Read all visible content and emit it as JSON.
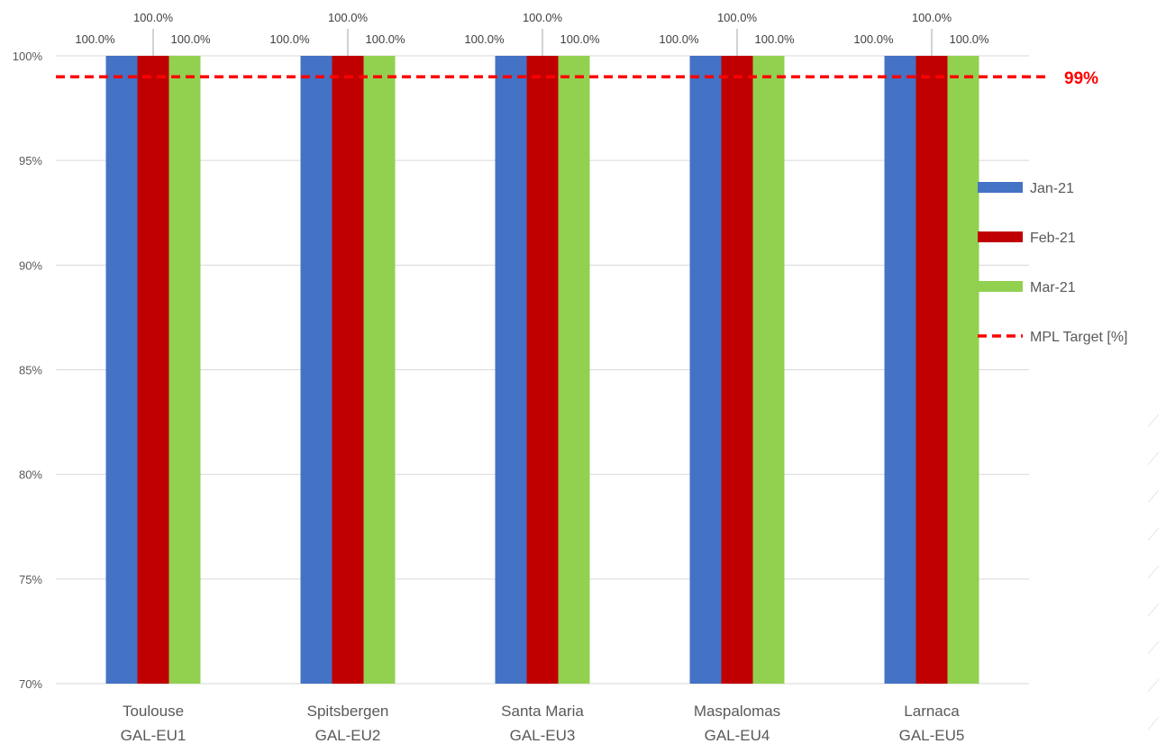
{
  "chart_data": {
    "type": "bar",
    "categories": [
      [
        "Toulouse",
        "GAL-EU1"
      ],
      [
        "Spitsbergen",
        "GAL-EU2"
      ],
      [
        "Santa Maria",
        "GAL-EU3"
      ],
      [
        "Maspalomas",
        "GAL-EU4"
      ],
      [
        "Larnaca",
        "GAL-EU5"
      ]
    ],
    "series": [
      {
        "name": "Jan-21",
        "color": "#4472C4",
        "values": [
          100.0,
          100.0,
          100.0,
          100.0,
          100.0
        ]
      },
      {
        "name": "Feb-21",
        "color": "#C00000",
        "values": [
          100.0,
          100.0,
          100.0,
          100.0,
          100.0
        ]
      },
      {
        "name": "Mar-21",
        "color": "#92D050",
        "values": [
          100.0,
          100.0,
          100.0,
          100.0,
          100.0
        ]
      }
    ],
    "data_label_format": "0.0%",
    "target_line": {
      "name": "MPL Target [%]",
      "value": 99,
      "label": "99%",
      "color": "#FF0000",
      "style": "dashed"
    },
    "y_axis": {
      "min": 70,
      "max": 100,
      "step": 5,
      "format": "percent",
      "ticks": [
        "70%",
        "75%",
        "80%",
        "85%",
        "90%",
        "95%",
        "100%"
      ]
    },
    "grid": true,
    "legend_position": "right"
  }
}
